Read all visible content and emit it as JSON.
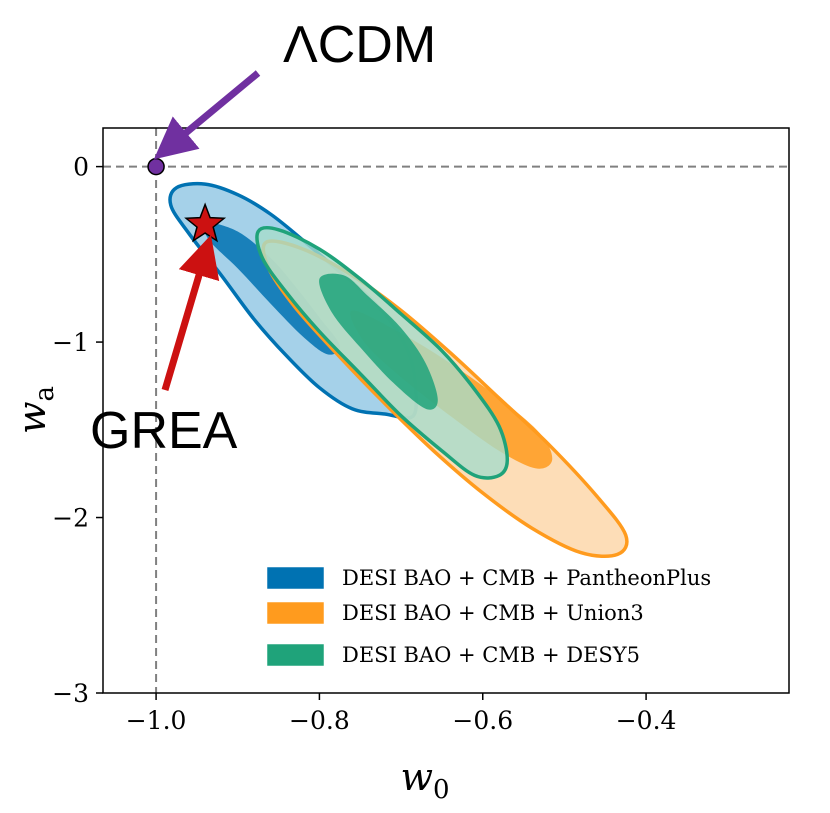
{
  "chart_data": {
    "type": "contour",
    "title": "",
    "xlabel": "w",
    "xlabel_sub": "0",
    "ylabel": "w",
    "ylabel_sub": "a",
    "xlim": [
      -1.065,
      -0.225
    ],
    "ylim": [
      -3.0,
      0.22
    ],
    "xticks": [
      -1.0,
      -0.8,
      -0.6,
      -0.4
    ],
    "xtick_labels": [
      "−1.0",
      "−0.8",
      "−0.6",
      "−0.4"
    ],
    "yticks": [
      0,
      -1,
      -2,
      -3
    ],
    "ytick_labels": [
      "0",
      "−1",
      "−2",
      "−3"
    ],
    "reference_lines": {
      "w0": -1.0,
      "wa": 0.0,
      "style": "dashed",
      "color": "#808080"
    },
    "series": [
      {
        "name": "DESI BAO + CMB + PantheonPlus",
        "color": "#0072b2",
        "fill_inner": "#0072b2",
        "fill_outer": "#8ec5e3",
        "center": [
          -0.83,
          -0.75
        ],
        "outer_contour": [
          [
            -0.975,
            -0.12
          ],
          [
            -0.94,
            -0.1
          ],
          [
            -0.9,
            -0.16
          ],
          [
            -0.86,
            -0.27
          ],
          [
            -0.82,
            -0.42
          ],
          [
            -0.78,
            -0.58
          ],
          [
            -0.74,
            -0.74
          ],
          [
            -0.71,
            -0.9
          ],
          [
            -0.69,
            -1.07
          ],
          [
            -0.683,
            -1.22
          ],
          [
            -0.685,
            -1.42
          ],
          [
            -0.72,
            -1.41
          ],
          [
            -0.76,
            -1.38
          ],
          [
            -0.8,
            -1.26
          ],
          [
            -0.84,
            -1.08
          ],
          [
            -0.88,
            -0.87
          ],
          [
            -0.92,
            -0.62
          ],
          [
            -0.96,
            -0.38
          ],
          [
            -0.982,
            -0.22
          ]
        ],
        "inner_contour": [
          [
            -0.94,
            -0.32
          ],
          [
            -0.9,
            -0.37
          ],
          [
            -0.86,
            -0.52
          ],
          [
            -0.83,
            -0.68
          ],
          [
            -0.8,
            -0.86
          ],
          [
            -0.775,
            -1.02
          ],
          [
            -0.79,
            -1.07
          ],
          [
            -0.82,
            -0.97
          ],
          [
            -0.86,
            -0.78
          ],
          [
            -0.9,
            -0.58
          ],
          [
            -0.935,
            -0.42
          ]
        ]
      },
      {
        "name": "DESI BAO + CMB + Union3",
        "color": "#ff9b1e",
        "fill_inner": "#ff9b1e",
        "fill_outer": "#fdd5a5",
        "center": [
          -0.65,
          -1.2
        ],
        "outer_contour": [
          [
            -0.865,
            -0.43
          ],
          [
            -0.82,
            -0.47
          ],
          [
            -0.76,
            -0.62
          ],
          [
            -0.7,
            -0.82
          ],
          [
            -0.64,
            -1.06
          ],
          [
            -0.58,
            -1.32
          ],
          [
            -0.52,
            -1.58
          ],
          [
            -0.46,
            -1.88
          ],
          [
            -0.425,
            -2.1
          ],
          [
            -0.435,
            -2.21
          ],
          [
            -0.48,
            -2.2
          ],
          [
            -0.54,
            -2.06
          ],
          [
            -0.6,
            -1.86
          ],
          [
            -0.66,
            -1.62
          ],
          [
            -0.72,
            -1.35
          ],
          [
            -0.78,
            -1.06
          ],
          [
            -0.83,
            -0.8
          ],
          [
            -0.862,
            -0.58
          ]
        ],
        "inner_contour": [
          [
            -0.76,
            -0.82
          ],
          [
            -0.7,
            -0.95
          ],
          [
            -0.64,
            -1.12
          ],
          [
            -0.58,
            -1.32
          ],
          [
            -0.53,
            -1.52
          ],
          [
            -0.515,
            -1.67
          ],
          [
            -0.535,
            -1.72
          ],
          [
            -0.58,
            -1.62
          ],
          [
            -0.64,
            -1.42
          ],
          [
            -0.7,
            -1.2
          ],
          [
            -0.745,
            -1.0
          ]
        ]
      },
      {
        "name": "DESI BAO + CMB + DESY5",
        "color": "#1fa37a",
        "fill_inner": "#1fa37a",
        "fill_outer": "#a6dccb",
        "center": [
          -0.73,
          -1.1
        ],
        "outer_contour": [
          [
            -0.875,
            -0.37
          ],
          [
            -0.85,
            -0.36
          ],
          [
            -0.8,
            -0.47
          ],
          [
            -0.75,
            -0.64
          ],
          [
            -0.7,
            -0.84
          ],
          [
            -0.65,
            -1.05
          ],
          [
            -0.61,
            -1.27
          ],
          [
            -0.58,
            -1.48
          ],
          [
            -0.57,
            -1.67
          ],
          [
            -0.58,
            -1.76
          ],
          [
            -0.61,
            -1.76
          ],
          [
            -0.65,
            -1.62
          ],
          [
            -0.7,
            -1.42
          ],
          [
            -0.75,
            -1.18
          ],
          [
            -0.8,
            -0.94
          ],
          [
            -0.84,
            -0.72
          ],
          [
            -0.87,
            -0.52
          ]
        ],
        "inner_contour": [
          [
            -0.8,
            -0.64
          ],
          [
            -0.77,
            -0.62
          ],
          [
            -0.74,
            -0.74
          ],
          [
            -0.7,
            -0.92
          ],
          [
            -0.67,
            -1.12
          ],
          [
            -0.655,
            -1.33
          ],
          [
            -0.67,
            -1.38
          ],
          [
            -0.71,
            -1.23
          ],
          [
            -0.75,
            -1.03
          ],
          [
            -0.785,
            -0.83
          ]
        ]
      }
    ],
    "points": [
      {
        "label": "ΛCDM",
        "w0": -1.0,
        "wa": 0.0,
        "marker": "circle",
        "color": "#7030a0"
      },
      {
        "label": "GREA",
        "w0": -0.94,
        "wa": -0.33,
        "marker": "star",
        "color": "#cc1111"
      }
    ],
    "legend_location": "lower-right"
  }
}
